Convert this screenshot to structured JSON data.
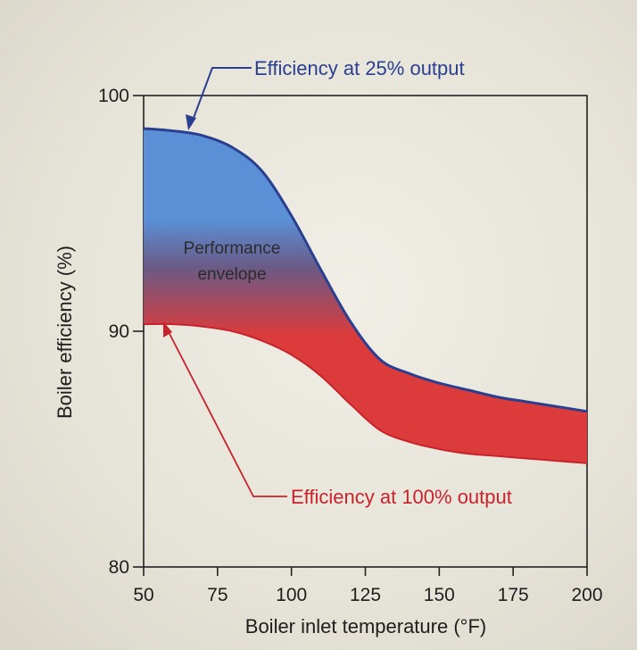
{
  "chart_data": {
    "type": "area",
    "title": "",
    "xlabel": "Boiler inlet temperature (°F)",
    "ylabel": "Boiler efficiency (%)",
    "xlim": [
      50,
      200
    ],
    "ylim": [
      80,
      100
    ],
    "x_ticks": [
      50,
      75,
      100,
      125,
      150,
      175,
      200
    ],
    "y_ticks": [
      80,
      90,
      100
    ],
    "grid": false,
    "series": [
      {
        "name": "Efficiency at 25% output",
        "color": "#2a3f8f",
        "x": [
          50,
          60,
          70,
          80,
          90,
          100,
          110,
          120,
          130,
          140,
          150,
          160,
          170,
          180,
          190,
          200
        ],
        "values": [
          98.6,
          98.5,
          98.3,
          97.8,
          96.8,
          94.9,
          92.6,
          90.4,
          88.8,
          88.2,
          87.8,
          87.5,
          87.2,
          87.0,
          86.8,
          86.6
        ]
      },
      {
        "name": "Efficiency at 100% output",
        "color": "#c8232c",
        "x": [
          50,
          60,
          70,
          80,
          90,
          100,
          110,
          120,
          130,
          140,
          150,
          160,
          170,
          180,
          190,
          200
        ],
        "values": [
          90.3,
          90.3,
          90.2,
          90.0,
          89.6,
          89.0,
          88.1,
          86.9,
          85.8,
          85.3,
          85.0,
          84.8,
          84.7,
          84.6,
          84.5,
          84.4
        ]
      }
    ],
    "annotations": {
      "top_curve": "Efficiency at 25% output",
      "bottom_curve": "Efficiency at 100% output",
      "band_line1": "Performance",
      "band_line2": "envelope"
    },
    "colors": {
      "band_top": "#5b8fd6",
      "band_mid": "#6a5a86",
      "band_bottom": "#dc3b3b",
      "top_line": "#2a3f8f",
      "bottom_line": "#c8232c",
      "axis": "#222222"
    }
  }
}
